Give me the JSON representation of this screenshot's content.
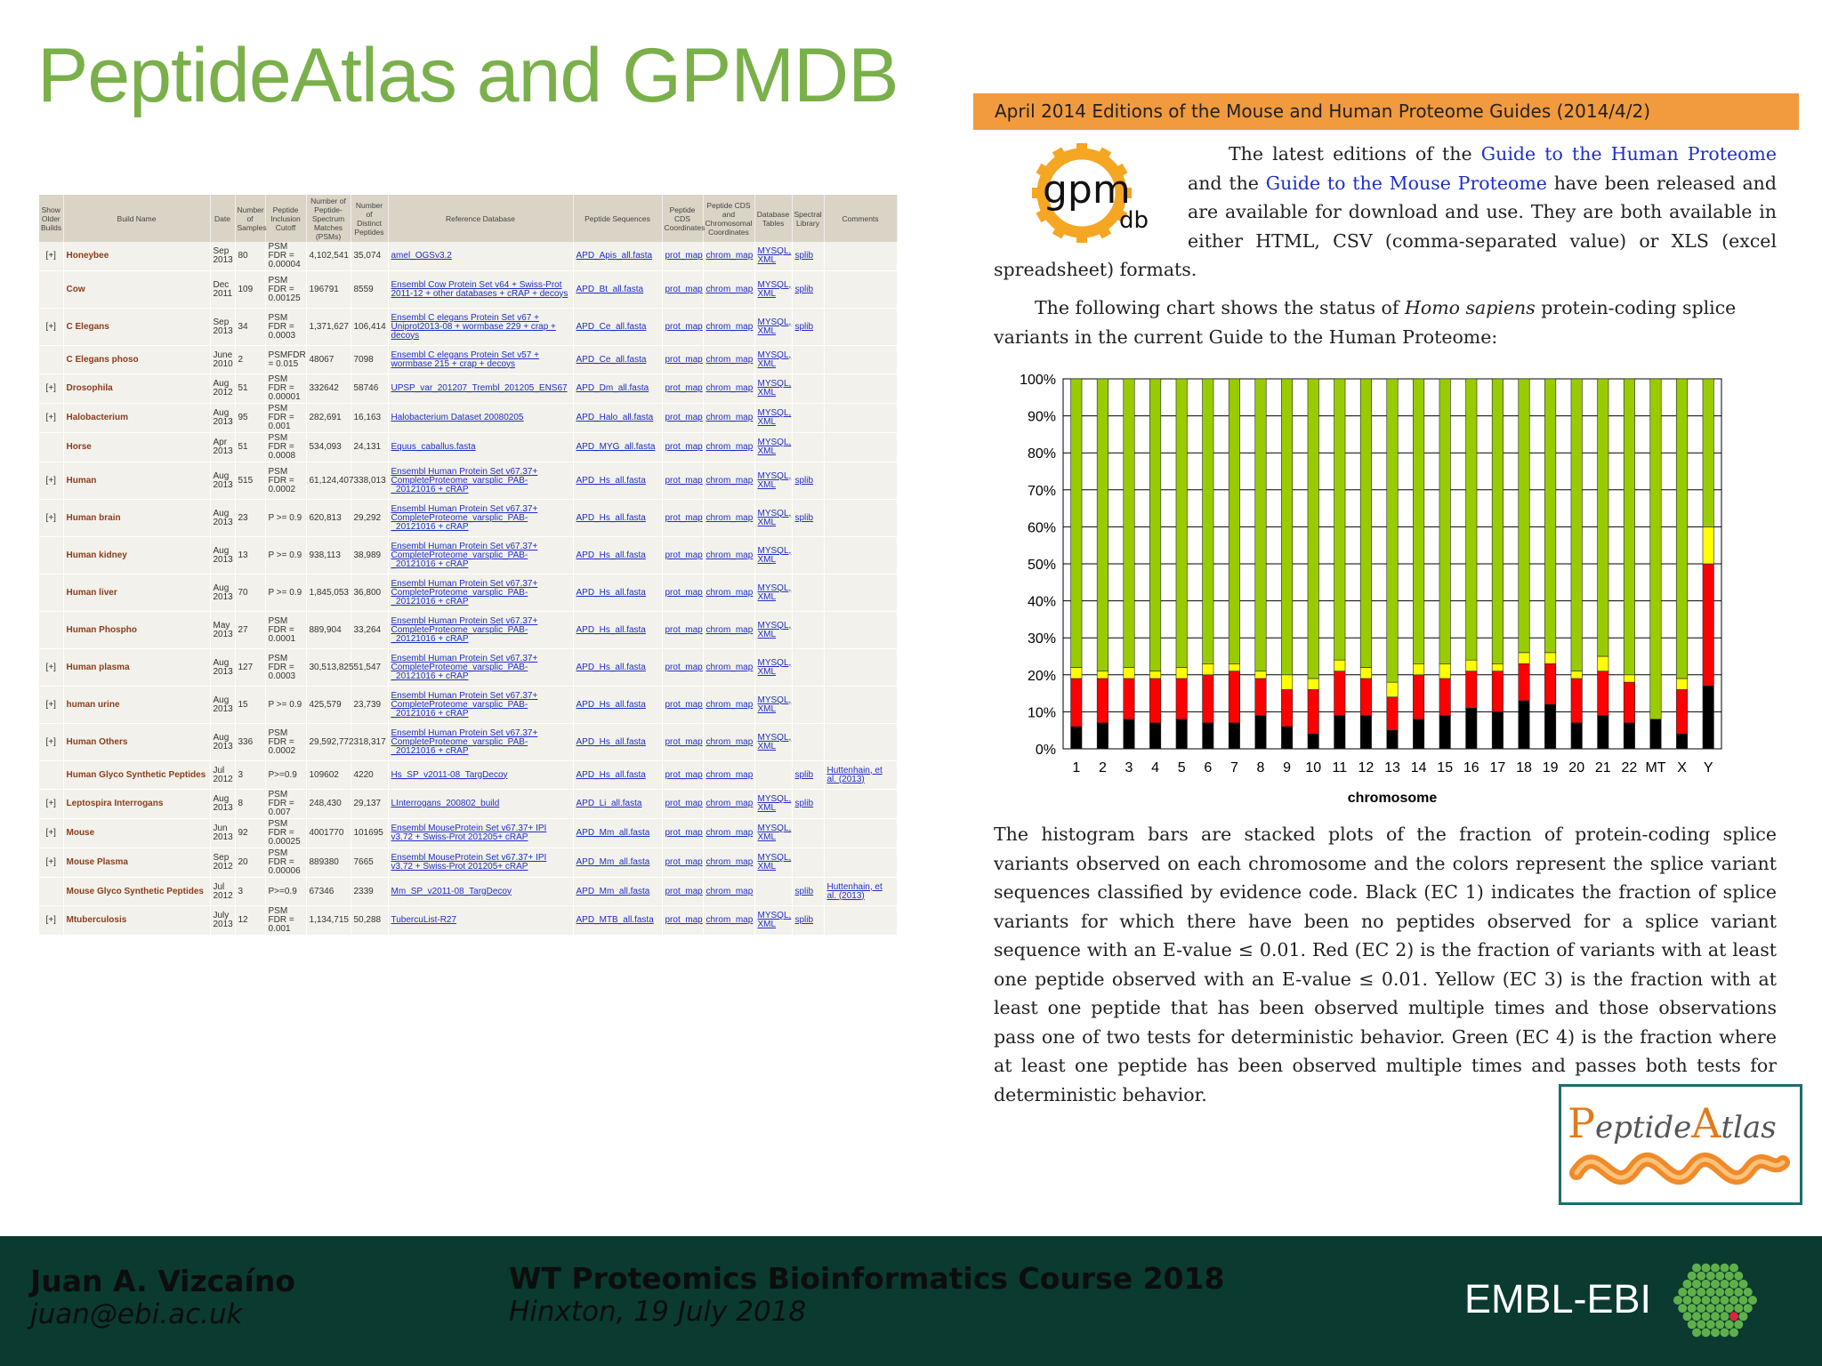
{
  "slide": {
    "title": "PeptideAtlas and GPMDB"
  },
  "builds_table": {
    "headers": [
      "Show Older Builds",
      "Build Name",
      "Date",
      "Number of Samples",
      "Peptide Inclusion Cutoff",
      "Number of Peptide-Spectrum Matches (PSMs)",
      "Number of Distinct Peptides",
      "Reference Database",
      "Peptide Sequences",
      "Peptide CDS Coordinates",
      "Peptide CDS and Chromosomal Coordinates",
      "Database Tables",
      "Spectral Library",
      "Comments"
    ],
    "rows": [
      {
        "exp": "[+]",
        "name": "Honeybee",
        "date": "Sep 2013",
        "samples": "80",
        "cutoff": "PSM FDR = 0.00004",
        "psms": "4,102,541",
        "peptides": "35,074",
        "refdb": "amel_OGSv3.2",
        "seqs": "APD_Apis_all.fasta",
        "cds": "prot_map",
        "chrom": "chrom_map",
        "tables": "MYSQL, XML",
        "speclib": "splib",
        "comments": ""
      },
      {
        "exp": "",
        "name": "Cow",
        "date": "Dec 2011",
        "samples": "109",
        "cutoff": "PSM FDR = 0.00125",
        "psms": "196791",
        "peptides": "8559",
        "refdb": "Ensembl Cow Protein Set v64 + Swiss-Prot 2011-12 + other databases + cRAP + decoys",
        "seqs": "APD_Bt_all.fasta",
        "cds": "prot_map",
        "chrom": "chrom_map",
        "tables": "MYSQL, XML",
        "speclib": "splib",
        "comments": ""
      },
      {
        "exp": "[+]",
        "name": "C Elegans",
        "date": "Sep 2013",
        "samples": "34",
        "cutoff": "PSM FDR = 0.0003",
        "psms": "1,371,627",
        "peptides": "106,414",
        "refdb": "Ensembl C elegans Protein Set v67 + Uniprot2013-08 + wormbase 229 + crap + decoys",
        "seqs": "APD_Ce_all.fasta",
        "cds": "prot_map",
        "chrom": "chrom_map",
        "tables": "MYSQL, XML",
        "speclib": "splib",
        "comments": ""
      },
      {
        "exp": "",
        "name": "C Elegans phoso",
        "date": "June 2010",
        "samples": "2",
        "cutoff": "PSMFDR = 0.015",
        "psms": "48067",
        "peptides": "7098",
        "refdb": "Ensembl C elegans Protein Set v57 + wormbase 215 + crap + decoys",
        "seqs": "APD_Ce_all.fasta",
        "cds": "prot_map",
        "chrom": "chrom_map",
        "tables": "MYSQL, XML",
        "speclib": "",
        "comments": ""
      },
      {
        "exp": "[+]",
        "name": "Drosophila",
        "date": "Aug 2012",
        "samples": "51",
        "cutoff": "PSM FDR = 0.00001",
        "psms": "332642",
        "peptides": "58746",
        "refdb": "UPSP_var_201207_Trembl_201205_ENS67",
        "seqs": "APD_Dm_all.fasta",
        "cds": "prot_map",
        "chrom": "chrom_map",
        "tables": "MYSQL, XML",
        "speclib": "",
        "comments": ""
      },
      {
        "exp": "[+]",
        "name": "Halobacterium",
        "date": "Aug 2013",
        "samples": "95",
        "cutoff": "PSM FDR = 0.001",
        "psms": "282,691",
        "peptides": "16,163",
        "refdb": "Halobacterium Dataset 20080205",
        "seqs": "APD_Halo_all.fasta",
        "cds": "prot_map",
        "chrom": "chrom_map",
        "tables": "MYSQL, XML",
        "speclib": "",
        "comments": ""
      },
      {
        "exp": "",
        "name": "Horse",
        "date": "Apr 2013",
        "samples": "51",
        "cutoff": "PSM FDR = 0.0008",
        "psms": "534,093",
        "peptides": "24,131",
        "refdb": "Equus_caballus.fasta",
        "seqs": "APD_MYG_all.fasta",
        "cds": "prot_map",
        "chrom": "chrom_map",
        "tables": "MYSQL, XML",
        "speclib": "",
        "comments": ""
      },
      {
        "exp": "[+]",
        "name": "Human",
        "date": "Aug 2013",
        "samples": "515",
        "cutoff": "PSM FDR = 0.0002",
        "psms": "61,124,407",
        "peptides": "338,013",
        "refdb": "Ensembl Human Protein Set v67.37+ CompleteProteome_varsplic_PAB-_20121016 + cRAP",
        "seqs": "APD_Hs_all.fasta",
        "cds": "prot_map",
        "chrom": "chrom_map",
        "tables": "MYSQL, XML",
        "speclib": "splib",
        "comments": ""
      },
      {
        "exp": "[+]",
        "name": "Human brain",
        "date": "Aug 2013",
        "samples": "23",
        "cutoff": "P >= 0.9",
        "psms": "620,813",
        "peptides": "29,292",
        "refdb": "Ensembl Human Protein Set v67.37+ CompleteProteome_varsplic_PAB-_20121016 + cRAP",
        "seqs": "APD_Hs_all.fasta",
        "cds": "prot_map",
        "chrom": "chrom_map",
        "tables": "MYSQL, XML",
        "speclib": "splib",
        "comments": ""
      },
      {
        "exp": "",
        "name": "Human kidney",
        "date": "Aug 2013",
        "samples": "13",
        "cutoff": "P >= 0.9",
        "psms": "938,113",
        "peptides": "38,989",
        "refdb": "Ensembl Human Protein Set v67.37+ CompleteProteome_varsplic_PAB-_20121016 + cRAP",
        "seqs": "APD_Hs_all.fasta",
        "cds": "prot_map",
        "chrom": "chrom_map",
        "tables": "MYSQL, XML",
        "speclib": "",
        "comments": ""
      },
      {
        "exp": "",
        "name": "Human liver",
        "date": "Aug 2013",
        "samples": "70",
        "cutoff": "P >= 0.9",
        "psms": "1,845,053",
        "peptides": "36,800",
        "refdb": "Ensembl Human Protein Set v67.37+ CompleteProteome_varsplic_PAB-_20121016 + cRAP",
        "seqs": "APD_Hs_all.fasta",
        "cds": "prot_map",
        "chrom": "chrom_map",
        "tables": "MYSQL, XML",
        "speclib": "",
        "comments": ""
      },
      {
        "exp": "",
        "name": "Human Phospho",
        "date": "May 2013",
        "samples": "27",
        "cutoff": "PSM FDR = 0.0001",
        "psms": "889,904",
        "peptides": "33,264",
        "refdb": "Ensembl Human Protein Set v67.37+ CompleteProteome_varsplic_PAB-_20121016 + cRAP",
        "seqs": "APD_Hs_all.fasta",
        "cds": "prot_map",
        "chrom": "chrom_map",
        "tables": "MYSQL, XML",
        "speclib": "",
        "comments": ""
      },
      {
        "exp": "[+]",
        "name": "Human plasma",
        "date": "Aug 2013",
        "samples": "127",
        "cutoff": "PSM FDR = 0.0003",
        "psms": "30,513,825",
        "peptides": "51,547",
        "refdb": "Ensembl Human Protein Set v67.37+ CompleteProteome_varsplic_PAB-_20121016 + cRAP",
        "seqs": "APD_Hs_all.fasta",
        "cds": "prot_map",
        "chrom": "chrom_map",
        "tables": "MYSQL, XML",
        "speclib": "",
        "comments": ""
      },
      {
        "exp": "[+]",
        "name": "human urine",
        "date": "Aug 2013",
        "samples": "15",
        "cutoff": "P >= 0.9",
        "psms": "425,579",
        "peptides": "23,739",
        "refdb": "Ensembl Human Protein Set v67.37+ CompleteProteome_varsplic_PAB-_20121016 + cRAP",
        "seqs": "APD_Hs_all.fasta",
        "cds": "prot_map",
        "chrom": "chrom_map",
        "tables": "MYSQL, XML",
        "speclib": "",
        "comments": ""
      },
      {
        "exp": "[+]",
        "name": "Human Others",
        "date": "Aug 2013",
        "samples": "336",
        "cutoff": "PSM FDR = 0.0002",
        "psms": "29,592,772",
        "peptides": "318,317",
        "refdb": "Ensembl Human Protein Set v67.37+ CompleteProteome_varsplic_PAB-_20121016 + cRAP",
        "seqs": "APD_Hs_all.fasta",
        "cds": "prot_map",
        "chrom": "chrom_map",
        "tables": "MYSQL, XML",
        "speclib": "",
        "comments": ""
      },
      {
        "exp": "",
        "name": "Human Glyco Synthetic Peptides",
        "date": "Jul 2012",
        "samples": "3",
        "cutoff": "P>=0.9",
        "psms": "109602",
        "peptides": "4220",
        "refdb": "Hs_SP_v2011-08_TargDecoy",
        "seqs": "APD_Hs_all.fasta",
        "cds": "prot_map",
        "chrom": "chrom_map",
        "tables": "",
        "speclib": "splib",
        "comments": "Huttenhain, et al. (2013)"
      },
      {
        "exp": "[+]",
        "name": "Leptospira Interrogans",
        "date": "Aug 2013",
        "samples": "8",
        "cutoff": "PSM FDR = 0.007",
        "psms": "248,430",
        "peptides": "29,137",
        "refdb": "LInterrogans_200802_build",
        "seqs": "APD_Li_all.fasta",
        "cds": "prot_map",
        "chrom": "chrom_map",
        "tables": "MYSQL, XML",
        "speclib": "splib",
        "comments": ""
      },
      {
        "exp": "[+]",
        "name": "Mouse",
        "date": "Jun 2013",
        "samples": "92",
        "cutoff": "PSM FDR = 0.00025",
        "psms": "4001770",
        "peptides": "101695",
        "refdb": "Ensembl MouseProtein Set v67.37+ IPI v3.72 + Swiss-Prot 201205+ cRAP",
        "seqs": "APD_Mm_all.fasta",
        "cds": "prot_map",
        "chrom": "chrom_map",
        "tables": "MYSQL, XML",
        "speclib": "",
        "comments": ""
      },
      {
        "exp": "[+]",
        "name": "Mouse Plasma",
        "date": "Sep 2012",
        "samples": "20",
        "cutoff": "PSM FDR = 0.00006",
        "psms": "889380",
        "peptides": "7665",
        "refdb": "Ensembl MouseProtein Set v67.37+ IPI v3.72 + Swiss-Prot 201205+ cRAP",
        "seqs": "APD_Mm_all.fasta",
        "cds": "prot_map",
        "chrom": "chrom_map",
        "tables": "MYSQL, XML",
        "speclib": "",
        "comments": ""
      },
      {
        "exp": "",
        "name": "Mouse Glyco Synthetic Peptides",
        "date": "Jul 2012",
        "samples": "3",
        "cutoff": "P>=0.9",
        "psms": "67346",
        "peptides": "2339",
        "refdb": "Mm_SP_v2011-08_TargDecoy",
        "seqs": "APD_Mm_all.fasta",
        "cds": "prot_map",
        "chrom": "chrom_map",
        "tables": "",
        "speclib": "splib",
        "comments": "Huttenhain, et al. (2013)"
      },
      {
        "exp": "[+]",
        "name": "Mtuberculosis",
        "date": "July 2013",
        "samples": "12",
        "cutoff": "PSM FDR = 0.001",
        "psms": "1,134,715",
        "peptides": "50,288",
        "refdb": "TubercuList-R27",
        "seqs": "APD_MTB_all.fasta",
        "cds": "prot_map",
        "chrom": "chrom_map",
        "tables": "MYSQL, XML",
        "speclib": "splib",
        "comments": ""
      }
    ]
  },
  "announcement": {
    "title": "April 2014 Editions of the Mouse and Human Proteome Guides (2014/4/2)",
    "logo_text": "gpm",
    "logo_subtext": "db",
    "para1": {
      "t1": "The latest editions of the ",
      "link1": "Guide to the Human Proteome",
      "t2": " and the ",
      "link2": "Guide to the Mouse Proteome",
      "t3": " have been released and are available for download and use. They are both available in either HTML, CSV (comma-separated value) or XLS (excel spreadsheet) formats."
    },
    "para2": {
      "t1": "The following chart shows the status of ",
      "species": "Homo sapiens",
      "t2": " protein-coding splice variants in the current Guide to the Human Proteome:"
    },
    "para3": "The histogram bars are stacked plots of the fraction of protein-coding splice variants observed on each chromosome and the colors represent the splice variant sequences classified by evidence code. Black (EC 1) indicates the fraction of splice variants for which there have been no peptides observed for a splice variant sequence with an E-value ≤ 0.01. Red (EC 2) is the fraction of variants with at least one peptide observed with an E-value ≤ 0.01. Yellow (EC 3) is the fraction with at least one peptide that has been observed multiple times and those observations pass one of two tests for deterministic behavior. Green (EC 4) is the fraction where at least one peptide has been observed multiple times and passes both tests for deterministic behavior."
  },
  "chart_data": {
    "type": "bar",
    "stacked": true,
    "categories": [
      "1",
      "2",
      "3",
      "4",
      "5",
      "6",
      "7",
      "8",
      "9",
      "10",
      "11",
      "12",
      "13",
      "14",
      "15",
      "16",
      "17",
      "18",
      "19",
      "20",
      "21",
      "22",
      "MT",
      "X",
      "Y"
    ],
    "series": [
      {
        "color": "#000000",
        "values": [
          6,
          7,
          8,
          7,
          8,
          7,
          7,
          9,
          6,
          4,
          9,
          9,
          5,
          8,
          9,
          11,
          10,
          13,
          12,
          7,
          9,
          7,
          8,
          4,
          17
        ]
      },
      {
        "color": "#ff0000",
        "values": [
          13,
          12,
          11,
          12,
          11,
          13,
          14,
          10,
          10,
          12,
          12,
          10,
          9,
          12,
          10,
          10,
          11,
          10,
          11,
          12,
          12,
          11,
          0,
          12,
          33
        ]
      },
      {
        "color": "#ffff00",
        "values": [
          3,
          2,
          3,
          2,
          3,
          3,
          2,
          2,
          4,
          3,
          3,
          3,
          4,
          3,
          4,
          3,
          2,
          3,
          3,
          2,
          4,
          2,
          0,
          3,
          10
        ]
      },
      {
        "color": "#99cc00",
        "values": [
          78,
          79,
          78,
          79,
          78,
          77,
          77,
          79,
          80,
          81,
          76,
          78,
          82,
          77,
          77,
          76,
          77,
          74,
          74,
          79,
          75,
          80,
          92,
          81,
          40
        ]
      }
    ],
    "xlabel": "chromosome",
    "ylim": [
      0,
      100
    ],
    "ytick_labels": [
      "0%",
      "10%",
      "20%",
      "30%",
      "40%",
      "50%",
      "60%",
      "70%",
      "80%",
      "90%",
      "100%"
    ],
    "grid": true
  },
  "peptideatlas_logo": {
    "text_first": "P",
    "text_mid": "eptide",
    "text_second": "A",
    "text_end": "tlas"
  },
  "footer": {
    "name": "Juan A. Vizcaíno",
    "email": "juan@ebi.ac.uk",
    "course": "WT Proteomics Bioinformatics Course 2018",
    "place_date": "Hinxton, 19 July 2018",
    "org": "EMBL-EBI"
  }
}
